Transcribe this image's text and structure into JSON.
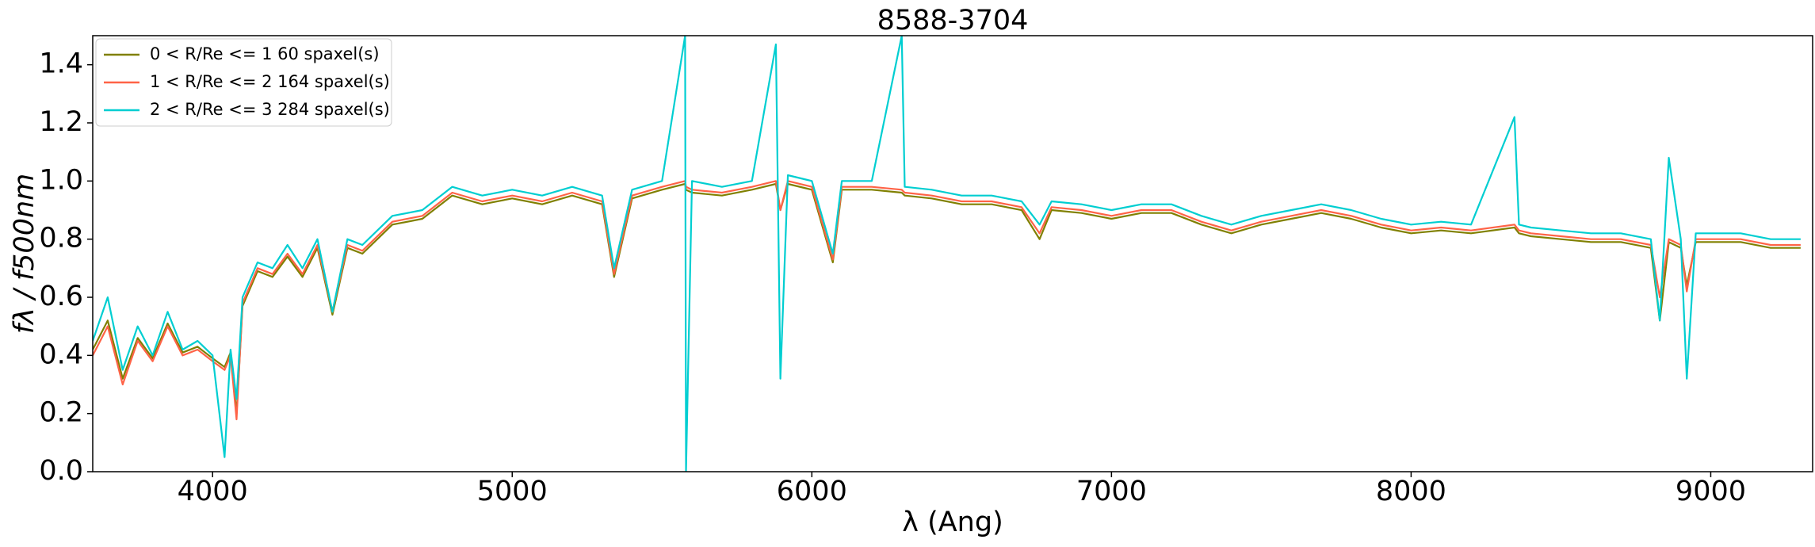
{
  "chart_data": {
    "type": "line",
    "title": "8588-3704",
    "xlabel": "λ (Ang)",
    "ylabel": "fλ / f500nm",
    "x": [
      3600,
      3650,
      3700,
      3750,
      3800,
      3850,
      3900,
      3950,
      4000,
      4040,
      4060,
      4080,
      4100,
      4150,
      4200,
      4250,
      4300,
      4350,
      4400,
      4450,
      4500,
      4600,
      4700,
      4800,
      4900,
      5000,
      5100,
      5200,
      5300,
      5340,
      5400,
      5500,
      5577,
      5580,
      5600,
      5700,
      5800,
      5880,
      5895,
      5920,
      6000,
      6070,
      6100,
      6200,
      6300,
      6310,
      6400,
      6500,
      6600,
      6700,
      6760,
      6800,
      6900,
      7000,
      7100,
      7200,
      7300,
      7400,
      7500,
      7600,
      7700,
      7800,
      7900,
      8000,
      8100,
      8200,
      8345,
      8360,
      8400,
      8500,
      8600,
      8700,
      8800,
      8830,
      8860,
      8900,
      8920,
      8950,
      9000,
      9100,
      9200,
      9300
    ],
    "series": [
      {
        "name": "0 < R/Re <= 1 60 spaxel(s)",
        "color": "#808000",
        "values": [
          0.42,
          0.52,
          0.32,
          0.46,
          0.39,
          0.51,
          0.41,
          0.43,
          0.39,
          0.36,
          0.41,
          0.2,
          0.57,
          0.69,
          0.67,
          0.74,
          0.67,
          0.77,
          0.54,
          0.77,
          0.75,
          0.85,
          0.87,
          0.95,
          0.92,
          0.94,
          0.92,
          0.95,
          0.92,
          0.67,
          0.94,
          0.97,
          0.99,
          0.97,
          0.96,
          0.95,
          0.97,
          0.99,
          0.9,
          0.99,
          0.97,
          0.72,
          0.97,
          0.97,
          0.96,
          0.95,
          0.94,
          0.92,
          0.92,
          0.9,
          0.8,
          0.9,
          0.89,
          0.87,
          0.89,
          0.89,
          0.85,
          0.82,
          0.85,
          0.87,
          0.89,
          0.87,
          0.84,
          0.82,
          0.83,
          0.82,
          0.84,
          0.82,
          0.81,
          0.8,
          0.79,
          0.79,
          0.77,
          0.52,
          0.79,
          0.77,
          0.64,
          0.79,
          0.79,
          0.79,
          0.77,
          0.77
        ]
      },
      {
        "name": "1 < R/Re <= 2 164 spaxel(s)",
        "color": "#ff6347",
        "values": [
          0.4,
          0.5,
          0.3,
          0.45,
          0.38,
          0.5,
          0.4,
          0.42,
          0.38,
          0.35,
          0.4,
          0.18,
          0.58,
          0.7,
          0.68,
          0.75,
          0.68,
          0.78,
          0.55,
          0.78,
          0.76,
          0.86,
          0.88,
          0.96,
          0.93,
          0.95,
          0.93,
          0.96,
          0.93,
          0.68,
          0.95,
          0.98,
          1.0,
          0.98,
          0.97,
          0.96,
          0.98,
          1.0,
          0.9,
          1.0,
          0.98,
          0.73,
          0.98,
          0.98,
          0.97,
          0.96,
          0.95,
          0.93,
          0.93,
          0.91,
          0.82,
          0.91,
          0.9,
          0.88,
          0.9,
          0.9,
          0.86,
          0.83,
          0.86,
          0.88,
          0.9,
          0.88,
          0.85,
          0.83,
          0.84,
          0.83,
          0.85,
          0.83,
          0.82,
          0.81,
          0.8,
          0.8,
          0.78,
          0.6,
          0.8,
          0.78,
          0.62,
          0.8,
          0.8,
          0.8,
          0.78,
          0.78
        ]
      },
      {
        "name": "2 < R/Re <= 3 284 spaxel(s)",
        "color": "#00ced1",
        "values": [
          0.45,
          0.6,
          0.35,
          0.5,
          0.4,
          0.55,
          0.42,
          0.45,
          0.4,
          0.05,
          0.42,
          0.25,
          0.6,
          0.72,
          0.7,
          0.78,
          0.7,
          0.8,
          0.55,
          0.8,
          0.78,
          0.88,
          0.9,
          0.98,
          0.95,
          0.97,
          0.95,
          0.98,
          0.95,
          0.7,
          0.97,
          1.0,
          1.5,
          0.0,
          1.0,
          0.98,
          1.0,
          1.47,
          0.32,
          1.02,
          1.0,
          0.75,
          1.0,
          1.0,
          1.5,
          0.98,
          0.97,
          0.95,
          0.95,
          0.93,
          0.85,
          0.93,
          0.92,
          0.9,
          0.92,
          0.92,
          0.88,
          0.85,
          0.88,
          0.9,
          0.92,
          0.9,
          0.87,
          0.85,
          0.86,
          0.85,
          1.22,
          0.85,
          0.84,
          0.83,
          0.82,
          0.82,
          0.8,
          0.52,
          1.08,
          0.8,
          0.32,
          0.82,
          0.82,
          0.82,
          0.8,
          0.8
        ]
      }
    ],
    "xlim": [
      3600,
      9340
    ],
    "xticks": [
      4000,
      5000,
      6000,
      7000,
      8000,
      9000
    ],
    "ylim": [
      0,
      1.5
    ],
    "yticks": [
      {
        "value": 0,
        "label": "0.0"
      },
      0.2,
      0.4,
      0.6,
      0.8,
      {
        "value": 1,
        "label": "1.0"
      },
      1.2,
      1.4
    ],
    "grid": false,
    "legend": "upper left"
  }
}
